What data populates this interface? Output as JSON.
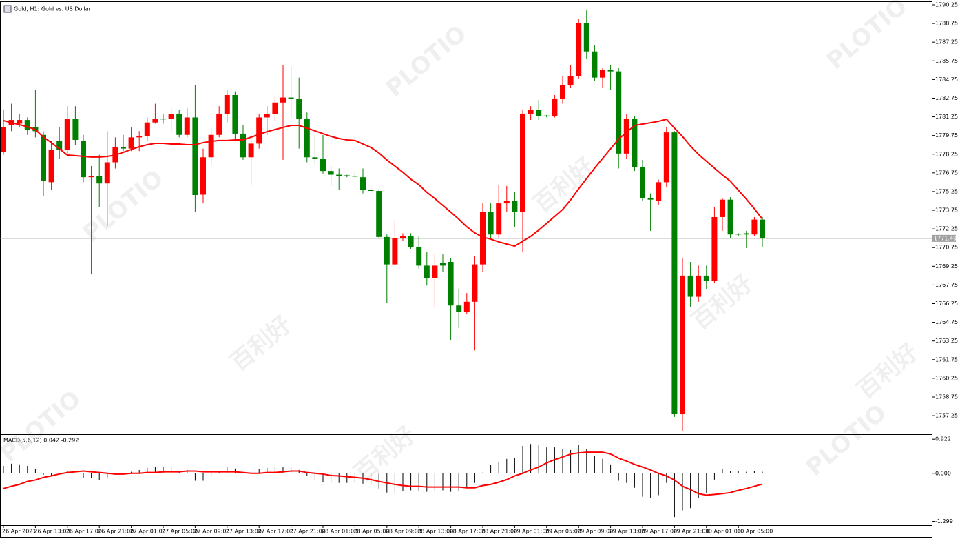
{
  "chart_data": [
    {
      "type": "candlestick",
      "title": "Gold, H1:  Gold vs. US Dollar",
      "categories": [
        "26 Apr 2021",
        null,
        null,
        null,
        "26 Apr 13:00",
        null,
        null,
        null,
        "26 Apr 17:00",
        null,
        null,
        null,
        "26 Apr 21:00",
        null,
        null,
        null,
        "27 Apr 01:00",
        null,
        null,
        null,
        "27 Apr 05:00",
        null,
        null,
        null,
        "27 Apr 09:00",
        null,
        null,
        null,
        "27 Apr 13:00",
        null,
        null,
        null,
        "27 Apr 17:00",
        null,
        null,
        null,
        "27 Apr 21:00",
        null,
        null,
        null,
        "28 Apr 01:00",
        null,
        null,
        null,
        "28 Apr 05:00",
        null,
        null,
        null,
        "28 Apr 09:00",
        null,
        null,
        null,
        "28 Apr 13:00",
        null,
        null,
        null,
        "28 Apr 17:00",
        null,
        null,
        null,
        "28 Apr 21:00",
        null,
        null,
        null,
        "29 Apr 01:00",
        null,
        null,
        null,
        "29 Apr 05:00",
        null,
        null,
        null,
        "29 Apr 09:00",
        null,
        null,
        null,
        "29 Apr 13:00",
        null,
        null,
        null,
        "29 Apr 17:00",
        null,
        null,
        null,
        "29 Apr 21:00",
        null,
        null,
        null,
        "30 Apr 01:00",
        null,
        null,
        null,
        "30 Apr 05:00",
        null,
        null,
        null
      ],
      "open": [
        1778.4,
        1780.6,
        1780.7,
        1781.0,
        1780.4,
        1779.8,
        1776.0,
        1779.3,
        1778.6,
        1781.1,
        1779.3,
        1776.4,
        1776.5,
        1775.9,
        1777.6,
        1778.8,
        1778.7,
        1779.6,
        1779.7,
        1780.8,
        1781.1,
        1781.1,
        1781.5,
        1779.8,
        1781.2,
        1775.0,
        1778.0,
        1779.8,
        1781.5,
        1783.0,
        1779.9,
        1778.0,
        1779.1,
        1781.2,
        1781.5,
        1782.4,
        1782.8,
        1782.7,
        1781.1,
        1778.0,
        1777.9,
        1776.9,
        1776.6,
        1776.55,
        1776.5,
        1776.4,
        1775.4,
        1775.3,
        1771.6,
        1769.4,
        1771.5,
        1771.7,
        1770.8,
        1769.3,
        1768.3,
        1769.5,
        1769.6,
        1766.1,
        1765.6,
        1766.4,
        1769.4,
        1773.6,
        1771.8,
        1774.3,
        1774.5,
        1773.6,
        1781.5,
        1781.8,
        1781.35,
        1781.3,
        1782.7,
        1783.8,
        1784.5,
        1788.8,
        1786.5,
        1784.4,
        1785.0,
        1784.9,
        1778.3,
        1781.1,
        1777.2,
        1774.7,
        1774.5,
        1776.0,
        1780.0,
        1757.4,
        1768.5,
        1766.8,
        1768.5,
        1768.05,
        1773.2,
        1774.6,
        1771.85,
        1771.9,
        1771.8,
        1773.0
      ],
      "high": [
        1781.8,
        1782.3,
        1781.5,
        1781.2,
        1783.4,
        1780.1,
        1779.3,
        1780.4,
        1782.1,
        1782.1,
        1779.8,
        1777.3,
        1778.2,
        1780.1,
        1779.6,
        1779.8,
        1780.4,
        1780.1,
        1781.2,
        1782.3,
        1781.5,
        1781.9,
        1781.8,
        1782.0,
        1783.8,
        1778.7,
        1780.4,
        1782.1,
        1783.4,
        1783.3,
        1780.6,
        1779.8,
        1781.5,
        1782.1,
        1783.0,
        1785.4,
        1785.3,
        1784.4,
        1781.6,
        1779.8,
        1779.8,
        1777.3,
        1777.1,
        1776.6,
        1776.8,
        1777.1,
        1775.6,
        1775.4,
        1771.8,
        1772.9,
        1771.9,
        1771.9,
        1771.7,
        1770.4,
        1770.2,
        1770.2,
        1769.9,
        1767.4,
        1767.1,
        1770.1,
        1774.3,
        1774.3,
        1775.8,
        1775.7,
        1775.2,
        1781.8,
        1782.1,
        1782.6,
        1781.4,
        1783.0,
        1784.5,
        1785.4,
        1789.1,
        1789.8,
        1787.0,
        1785.2,
        1785.4,
        1785.2,
        1781.5,
        1781.3,
        1777.8,
        1775.1,
        1776.2,
        1780.4,
        1780.1,
        1769.9,
        1769.6,
        1769.3,
        1769.3,
        1774.0,
        1774.7,
        1774.8,
        1771.9,
        1772.1,
        1773.2,
        1773.2
      ],
      "low": [
        1778.2,
        1780.1,
        1780.4,
        1779.8,
        1779.6,
        1774.9,
        1775.4,
        1777.9,
        1778.2,
        1779.0,
        1776.0,
        1768.6,
        1774.0,
        1772.5,
        1777.1,
        1778.5,
        1778.5,
        1778.5,
        1779.3,
        1780.7,
        1780.7,
        1780.1,
        1779.6,
        1779.6,
        1773.6,
        1774.3,
        1777.4,
        1779.6,
        1780.8,
        1779.3,
        1777.8,
        1775.8,
        1778.7,
        1779.8,
        1780.9,
        1777.8,
        1781.2,
        1778.7,
        1777.6,
        1777.4,
        1776.7,
        1775.7,
        1775.4,
        1776.4,
        1776.3,
        1775.1,
        1775.1,
        1771.5,
        1766.3,
        1769.3,
        1771.3,
        1770.6,
        1769.0,
        1767.7,
        1766.0,
        1768.8,
        1763.3,
        1764.3,
        1765.4,
        1762.5,
        1768.8,
        1771.5,
        1771.5,
        1773.6,
        1772.4,
        1770.4,
        1781.0,
        1781.0,
        1781.2,
        1781.2,
        1782.3,
        1783.6,
        1784.3,
        1785.9,
        1784.1,
        1783.6,
        1783.4,
        1777.1,
        1777.9,
        1776.9,
        1774.5,
        1772.1,
        1774.2,
        1775.6,
        1757.15,
        1756.0,
        1766.0,
        1766.4,
        1767.4,
        1767.9,
        1772.1,
        1771.5,
        1771.7,
        1770.7,
        1771.7,
        1770.8
      ],
      "close": [
        1780.4,
        1781.0,
        1781.0,
        1780.2,
        1780.1,
        1776.1,
        1778.6,
        1778.6,
        1781.1,
        1779.4,
        1776.4,
        1776.5,
        1775.9,
        1777.6,
        1778.8,
        1778.7,
        1779.6,
        1779.7,
        1780.8,
        1781.1,
        1781.05,
        1781.5,
        1779.8,
        1781.2,
        1774.97,
        1778.0,
        1779.8,
        1781.5,
        1783.0,
        1779.9,
        1778.0,
        1779.1,
        1781.2,
        1781.5,
        1782.4,
        1782.8,
        1782.7,
        1781.1,
        1778.0,
        1777.9,
        1776.9,
        1776.6,
        1776.5,
        1776.5,
        1776.45,
        1775.4,
        1775.3,
        1771.6,
        1769.4,
        1771.5,
        1771.7,
        1770.8,
        1769.3,
        1768.3,
        1769.3,
        1769.3,
        1766.1,
        1765.6,
        1766.4,
        1769.4,
        1773.6,
        1771.8,
        1774.3,
        1774.5,
        1773.6,
        1781.5,
        1781.8,
        1781.3,
        1781.3,
        1782.7,
        1783.8,
        1784.5,
        1788.8,
        1786.5,
        1784.4,
        1785.0,
        1784.9,
        1778.3,
        1781.1,
        1777.2,
        1774.7,
        1774.6,
        1776.0,
        1780.0,
        1757.4,
        1768.5,
        1766.8,
        1768.5,
        1768.05,
        1773.2,
        1774.6,
        1771.8,
        1771.8,
        1771.8,
        1773.0,
        1771.49
      ],
      "up_color": "#ff0000",
      "down_color": "#008000",
      "series": [
        {
          "color": "#ff0000",
          "values": [
            1780.95,
            1780.78,
            1780.62,
            1780.45,
            1780.23,
            1779.62,
            1779.18,
            1778.68,
            1778.18,
            1778.13,
            1778.07,
            1778.02,
            1778.02,
            1778.07,
            1778.18,
            1778.4,
            1778.63,
            1778.85,
            1779.01,
            1779.12,
            1779.12,
            1779.07,
            1779.07,
            1779.01,
            1779.01,
            1779.18,
            1779.29,
            1779.35,
            1779.35,
            1779.4,
            1779.4,
            1779.62,
            1779.84,
            1780.06,
            1780.23,
            1780.4,
            1780.56,
            1780.56,
            1780.34,
            1780.12,
            1779.9,
            1779.68,
            1779.51,
            1779.4,
            1779.35,
            1779.07,
            1778.79,
            1778.35,
            1777.79,
            1777.3,
            1776.8,
            1776.24,
            1775.8,
            1775.19,
            1774.69,
            1774.14,
            1773.59,
            1773.03,
            1772.42,
            1771.93,
            1771.59,
            1771.43,
            1771.21,
            1771.04,
            1770.87,
            1771.26,
            1771.65,
            1772.15,
            1772.7,
            1773.25,
            1773.81,
            1774.58,
            1775.47,
            1776.3,
            1777.13,
            1777.91,
            1778.68,
            1779.46,
            1780.01,
            1780.56,
            1780.67,
            1780.78,
            1780.89,
            1781.06,
            1780.34,
            1779.68,
            1778.9,
            1778.24,
            1777.68,
            1777.13,
            1776.58,
            1776.08,
            1775.36,
            1774.64,
            1773.87,
            1773.03
          ]
        }
      ],
      "current_price": 1771.49,
      "current_price_color": "#a0a0a0",
      "ylim": [
        1755.76,
        1790.36
      ],
      "yticks": [
        1790.25,
        1788.75,
        1787.25,
        1785.75,
        1784.25,
        1782.75,
        1781.25,
        1779.75,
        1778.25,
        1776.75,
        1775.25,
        1773.75,
        1772.25,
        1770.75,
        1769.25,
        1767.75,
        1766.25,
        1764.75,
        1763.25,
        1761.75,
        1760.25,
        1758.75,
        1757.25
      ]
    },
    {
      "type": "macd",
      "title": "MACD(5,6,12) 0.042 -0.292",
      "series": [
        {
          "type": "bar",
          "color": "#000000",
          "values": [
            0.2,
            0.26,
            0.24,
            0.2,
            0.11,
            -0.04,
            -0.06,
            -0.02,
            0.07,
            0,
            -0.13,
            -0.13,
            -0.18,
            -0.11,
            -0.04,
            0,
            0.04,
            0.09,
            0.15,
            0.18,
            0.18,
            0.17,
            0.06,
            0.09,
            -0.2,
            -0.2,
            -0.07,
            0.07,
            0.18,
            0.13,
            0,
            0.02,
            0.11,
            0.15,
            0.17,
            0.18,
            0.17,
            0.09,
            -0.07,
            -0.2,
            -0.24,
            -0.24,
            -0.26,
            -0.26,
            -0.26,
            -0.28,
            -0.31,
            -0.41,
            -0.52,
            -0.54,
            -0.48,
            -0.46,
            -0.48,
            -0.5,
            -0.48,
            -0.46,
            -0.5,
            -0.48,
            -0.39,
            -0.26,
            0.02,
            0.22,
            0.3,
            0.39,
            0.42,
            0.74,
            0.79,
            0.76,
            0.7,
            0.7,
            0.66,
            0.63,
            0.76,
            0.66,
            0.48,
            0.39,
            0.24,
            -0.2,
            -0.26,
            -0.39,
            -0.63,
            -0.66,
            -0.59,
            -0.26,
            -1.18,
            -1.0,
            -0.94,
            -0.66,
            -0.54,
            -0.17,
            0.11,
            0.07,
            0.06,
            0.04,
            0.07,
            0.042
          ]
        },
        {
          "type": "line",
          "color": "#ff0000",
          "values": [
            -0.41,
            -0.35,
            -0.3,
            -0.22,
            -0.18,
            -0.11,
            -0.07,
            -0.02,
            0.02,
            0.04,
            0.06,
            0.04,
            0.02,
            0,
            -0.02,
            -0.02,
            0,
            0,
            0.02,
            0.02,
            0.04,
            0.04,
            0.04,
            0.06,
            0.06,
            0.04,
            0.04,
            0.04,
            0.04,
            0.04,
            0.02,
            0,
            0,
            0.02,
            0.02,
            0.04,
            0.06,
            0.06,
            0.02,
            0,
            -0.02,
            -0.06,
            -0.07,
            -0.09,
            -0.11,
            -0.13,
            -0.17,
            -0.22,
            -0.26,
            -0.3,
            -0.33,
            -0.35,
            -0.35,
            -0.37,
            -0.37,
            -0.37,
            -0.37,
            -0.37,
            -0.39,
            -0.39,
            -0.33,
            -0.3,
            -0.24,
            -0.17,
            -0.07,
            0,
            0.09,
            0.17,
            0.28,
            0.37,
            0.44,
            0.52,
            0.55,
            0.57,
            0.57,
            0.57,
            0.52,
            0.41,
            0.33,
            0.24,
            0.17,
            0.09,
            0,
            -0.07,
            -0.18,
            -0.35,
            -0.44,
            -0.55,
            -0.59,
            -0.57,
            -0.55,
            -0.52,
            -0.46,
            -0.41,
            -0.35,
            -0.292
          ]
        }
      ],
      "ylim": [
        -1.4,
        1.0
      ],
      "yticks": [
        0.922,
        {
          "value": 0,
          "label": "0.000"
        },
        -1.299
      ]
    }
  ],
  "watermark": {
    "brand": "PLOTIO",
    "chinese": "百利好"
  }
}
